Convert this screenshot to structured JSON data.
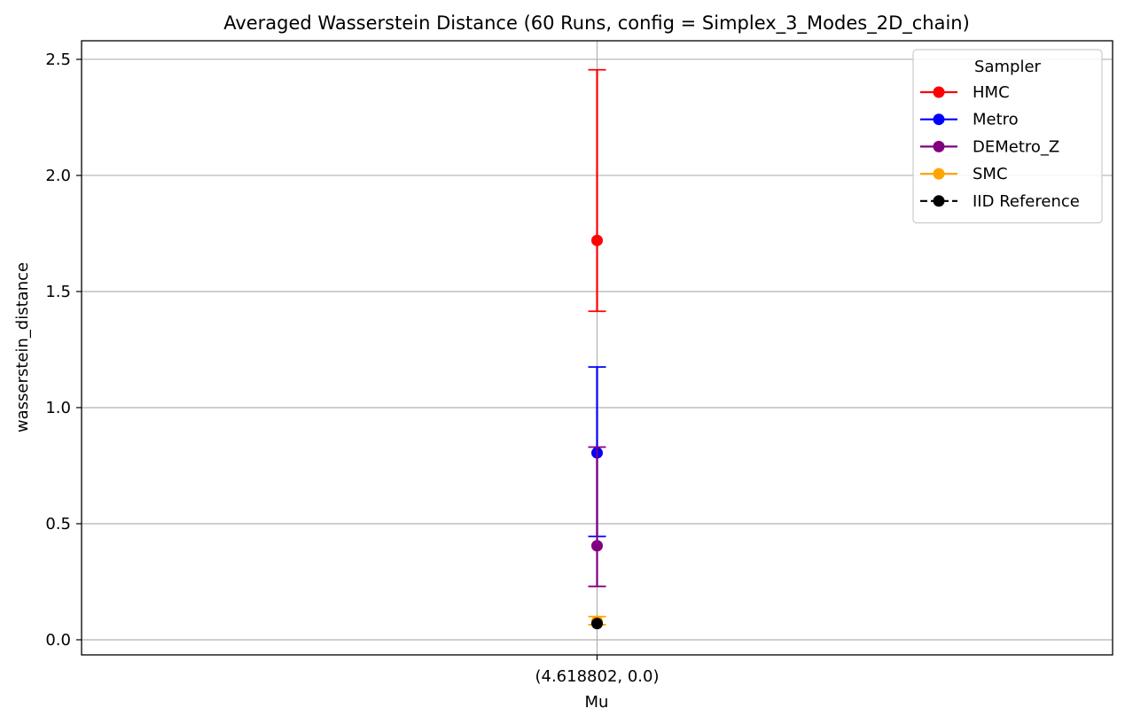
{
  "chart_data": {
    "type": "scatter",
    "title": "Averaged Wasserstein Distance (60 Runs, config = Simplex_3_Modes_2D_chain)",
    "xlabel": "Mu",
    "ylabel": "wasserstein_distance",
    "categories": [
      "(4.618802, 0.0)"
    ],
    "ylim": [
      -0.065,
      2.58
    ],
    "yticks": [
      "0.0",
      "0.5",
      "1.0",
      "1.5",
      "2.0",
      "2.5"
    ],
    "grid": true,
    "legend": {
      "title": "Sampler",
      "placement": "top-right"
    },
    "series": [
      {
        "name": "HMC",
        "color": "#ff0000",
        "linestyle": "solid",
        "values": [
          1.72
        ],
        "err_low": [
          1.415
        ],
        "err_high": [
          2.455
        ]
      },
      {
        "name": "Metro",
        "color": "#0000ff",
        "linestyle": "solid",
        "values": [
          0.805
        ],
        "err_low": [
          0.445
        ],
        "err_high": [
          1.175
        ]
      },
      {
        "name": "DEMetro_Z",
        "color": "#800080",
        "linestyle": "solid",
        "values": [
          0.405
        ],
        "err_low": [
          0.23
        ],
        "err_high": [
          0.83
        ]
      },
      {
        "name": "SMC",
        "color": "#ffa500",
        "linestyle": "solid",
        "values": [
          0.08
        ],
        "err_low": [
          0.065
        ],
        "err_high": [
          0.1
        ]
      },
      {
        "name": "IID Reference",
        "color": "#000000",
        "linestyle": "dashed",
        "values": [
          0.07
        ],
        "err_low": [
          0.07
        ],
        "err_high": [
          0.07
        ]
      }
    ]
  }
}
